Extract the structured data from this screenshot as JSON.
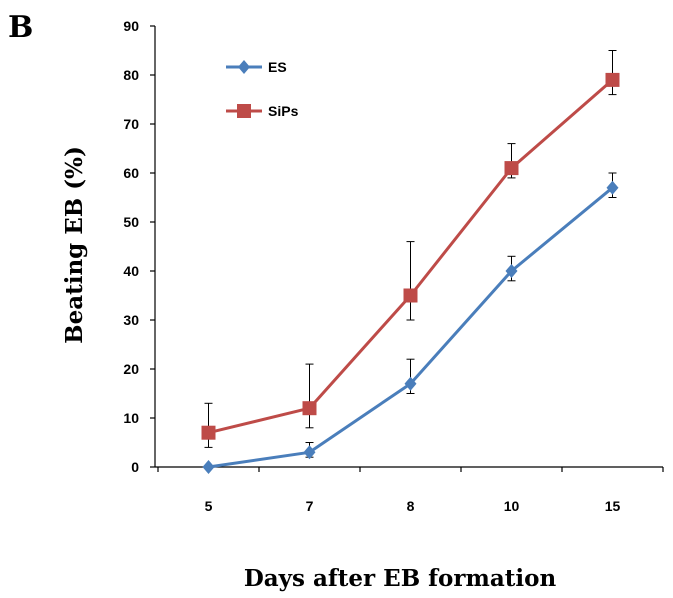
{
  "panel_label": "B",
  "colors": {
    "ES": "#4a7ebb",
    "SiPs": "#be4b48",
    "axis": "#000000",
    "error": "#000000"
  },
  "chart_data": {
    "type": "line",
    "categories": [
      "5",
      "7",
      "8",
      "10",
      "15"
    ],
    "xlabel": "Days after EB formation",
    "ylabel": "Beating EB (%)",
    "ylim": [
      0,
      90
    ],
    "yticks": [
      0,
      10,
      20,
      30,
      40,
      50,
      60,
      70,
      80,
      90
    ],
    "grid": false,
    "legend_position": "top-left",
    "series": [
      {
        "name": "ES",
        "marker": "diamond",
        "values": [
          0,
          3,
          17,
          40,
          57
        ],
        "error_plus": [
          0,
          2,
          5,
          3,
          3
        ],
        "error_minus": [
          0,
          1,
          2,
          2,
          2
        ]
      },
      {
        "name": "SiPs",
        "marker": "square",
        "values": [
          7,
          12,
          35,
          61,
          79
        ],
        "error_plus": [
          6,
          9,
          11,
          5,
          6
        ],
        "error_minus": [
          3,
          4,
          5,
          2,
          3
        ]
      }
    ]
  }
}
